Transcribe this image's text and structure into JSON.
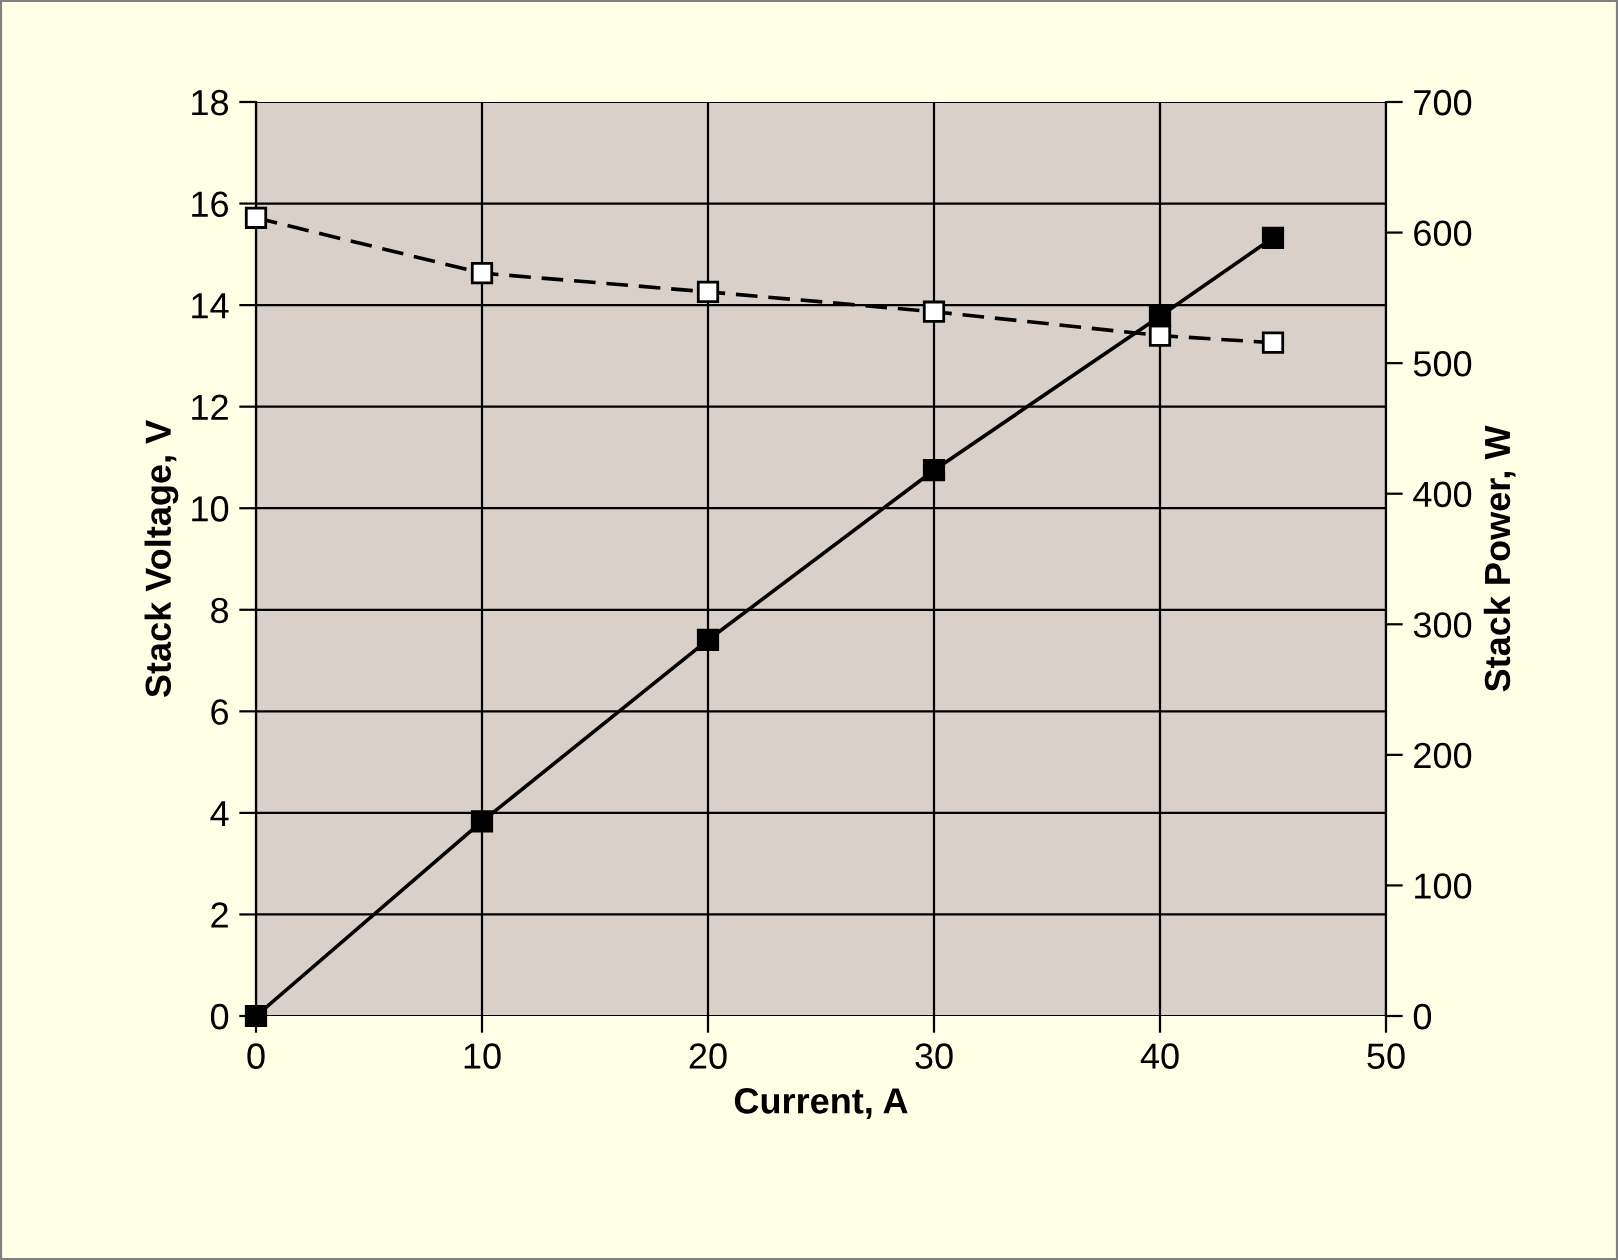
{
  "chart_data": {
    "type": "line",
    "xlabel": "Current, A",
    "ylabel": "Stack Voltage, V",
    "y2label": "Stack Power, W",
    "x": [
      0,
      10,
      20,
      30,
      40,
      45
    ],
    "series": [
      {
        "color": "#000000",
        "values": [
          15.72,
          14.63,
          14.26,
          13.87,
          13.4,
          13.26
        ],
        "line_style": "dashed",
        "marker": "square"
      },
      {
        "color": "#000000",
        "values": [
          0,
          149,
          288,
          418,
          536,
          596
        ],
        "axis": "y2",
        "line_style": "solid",
        "marker": "square"
      }
    ],
    "xlim": [
      0,
      50
    ],
    "xticks": [
      0,
      10,
      20,
      30,
      40,
      50
    ],
    "ylim": [
      0,
      18
    ],
    "yticks": [
      0,
      2,
      4,
      6,
      8,
      10,
      12,
      14,
      16,
      18
    ],
    "y2lim": [
      0,
      700
    ],
    "y2ticks": [
      0,
      100,
      200,
      300,
      400,
      500,
      600,
      700
    ],
    "grid": true,
    "legend": false
  }
}
